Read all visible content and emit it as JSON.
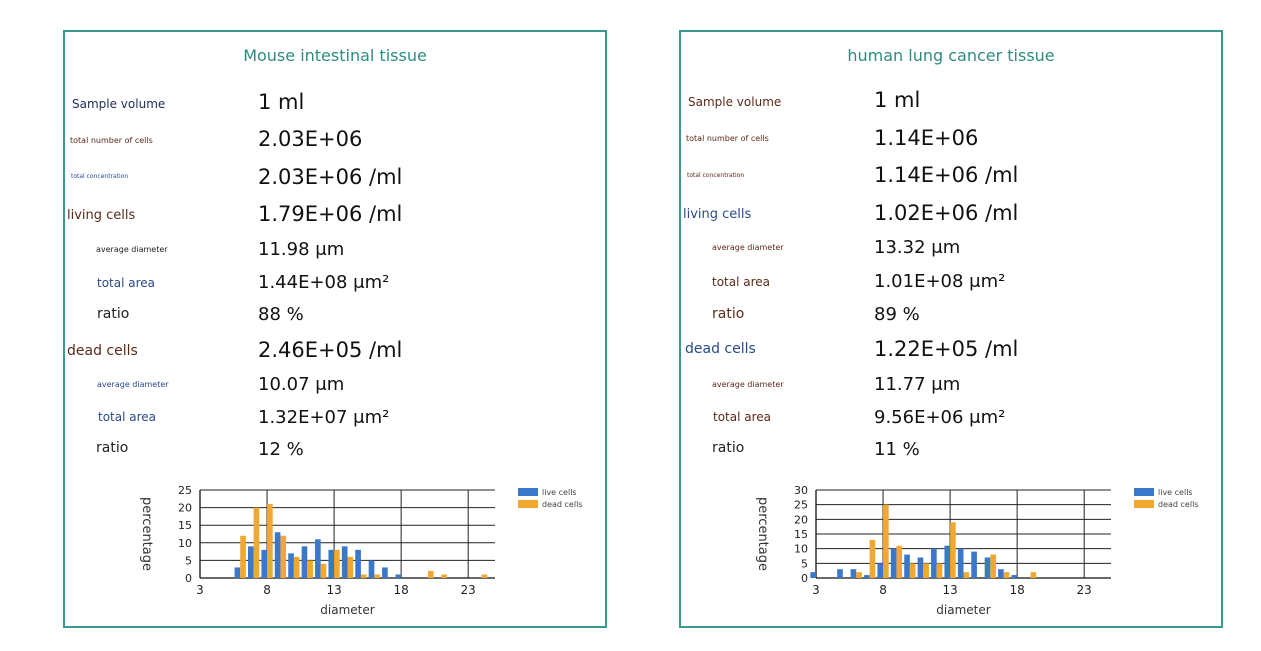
{
  "colors": {
    "live": "#3b78c9",
    "dead": "#f0a830",
    "border": "#3a9a8f",
    "title": "#2d8c80"
  },
  "panels": [
    {
      "title": "Mouse intestinal tissue",
      "sample_volume_label": "Sample volume",
      "sample_volume": "1 ml",
      "total_cells_label": "total number of cells",
      "total_cells": "2.03E+06",
      "total_conc_label": "total concentration",
      "total_conc": "2.03E+06 /ml",
      "living_label": "living cells",
      "living_value": "1.79E+06 /ml",
      "living_avg_label": "average diameter",
      "living_avg": "11.98 μm",
      "living_area_label": "total area",
      "living_area": "1.44E+08 μm²",
      "living_ratio_label": "ratio",
      "living_ratio": "88 %",
      "dead_label": "dead cells",
      "dead_value": "2.46E+05 /ml",
      "dead_avg_label": "average diameter",
      "dead_avg": "10.07 μm",
      "dead_area_label": "total area",
      "dead_area": "1.32E+07 μm²",
      "dead_ratio_label": "ratio",
      "dead_ratio": "12 %"
    },
    {
      "title": "human lung cancer tissue",
      "sample_volume_label": "Sample volume",
      "sample_volume": "1 ml",
      "total_cells_label": "total number of cells",
      "total_cells": "1.14E+06",
      "total_conc_label": "total concentration",
      "total_conc": "1.14E+06 /ml",
      "living_label": "living cells",
      "living_value": "1.02E+06 /ml",
      "living_avg_label": "average diameter",
      "living_avg": "13.32 μm",
      "living_area_label": "total area",
      "living_area": "1.01E+08 μm²",
      "living_ratio_label": "ratio",
      "living_ratio": "89 %",
      "dead_label": "dead cells",
      "dead_value": "1.22E+05 /ml",
      "dead_avg_label": "average diameter",
      "dead_avg": "11.77 μm",
      "dead_area_label": "total area",
      "dead_area": "9.56E+06 μm²",
      "dead_ratio_label": "ratio",
      "dead_ratio": "11 %"
    }
  ],
  "chart_data": [
    {
      "type": "bar",
      "xlabel": "diameter",
      "ylabel": "percentage",
      "xlim": [
        3,
        25
      ],
      "xticks": [
        3,
        8,
        13,
        18,
        23
      ],
      "ylim": [
        0,
        25
      ],
      "yticks": [
        0,
        5,
        10,
        15,
        20,
        25
      ],
      "grid": true,
      "legend_position": "top-right",
      "series": [
        {
          "name": "live cells",
          "x": [
            6,
            7,
            8,
            9,
            10,
            11,
            12,
            13,
            14,
            15,
            16,
            17,
            18
          ],
          "values": [
            3,
            9,
            8,
            13,
            7,
            9,
            11,
            8,
            9,
            8,
            5,
            3,
            1
          ]
        },
        {
          "name": "dead cells",
          "x": [
            6,
            7,
            8,
            9,
            10,
            11,
            12,
            13,
            14,
            15,
            16,
            17,
            18,
            19,
            20,
            21,
            22,
            23,
            24
          ],
          "values": [
            12,
            20,
            21,
            12,
            6,
            5,
            4,
            8,
            6,
            1,
            1,
            0,
            0,
            0,
            2,
            1,
            0,
            0,
            1
          ]
        }
      ]
    },
    {
      "type": "bar",
      "xlabel": "diameter",
      "ylabel": "percentage",
      "xlim": [
        3,
        25
      ],
      "xticks": [
        3,
        8,
        13,
        18,
        23
      ],
      "ylim": [
        0,
        30
      ],
      "yticks": [
        0,
        5,
        10,
        15,
        20,
        25,
        30
      ],
      "grid": true,
      "legend_position": "top-right",
      "series": [
        {
          "name": "live cells",
          "x": [
            3,
            4,
            5,
            6,
            7,
            8,
            9,
            10,
            11,
            12,
            13,
            14,
            15,
            16,
            17,
            18,
            19,
            20
          ],
          "values": [
            2,
            0,
            3,
            3,
            1,
            5,
            10,
            8,
            7,
            10,
            11,
            10,
            9,
            7,
            3,
            1,
            0,
            0
          ]
        },
        {
          "name": "dead cells",
          "x": [
            3,
            4,
            5,
            6,
            7,
            8,
            9,
            10,
            11,
            12,
            13,
            14,
            15,
            16,
            17,
            18,
            19,
            20
          ],
          "values": [
            0,
            0,
            0,
            2,
            13,
            25,
            11,
            5,
            5,
            5,
            19,
            2,
            0,
            8,
            2,
            0,
            2,
            0
          ]
        }
      ]
    }
  ]
}
